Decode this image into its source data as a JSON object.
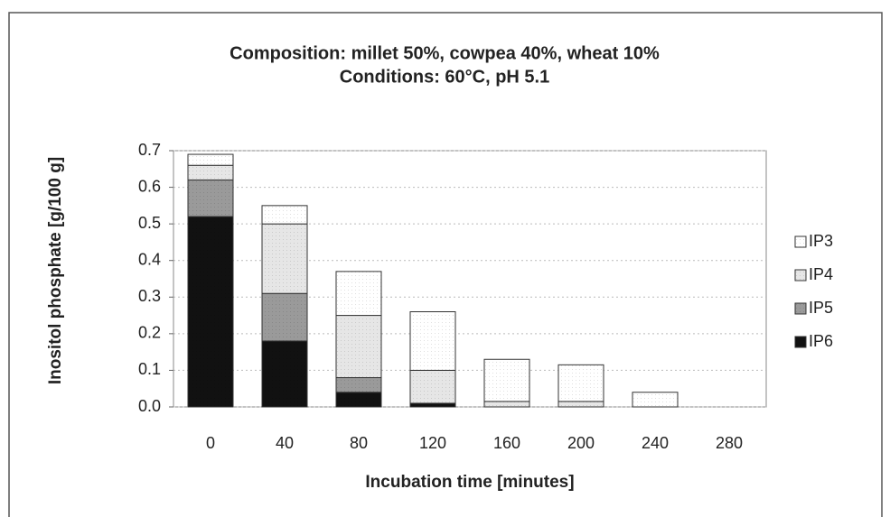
{
  "chart_data": {
    "type": "stacked-bar",
    "title": [
      "Composition: millet 50%, cowpea 40%, wheat 10%",
      "Conditions: 60°C, pH 5.1"
    ],
    "x_label": "Incubation time [minutes]",
    "y_label": "Inositol phosphate [g/100 g]",
    "categories": [
      "0",
      "40",
      "80",
      "120",
      "160",
      "200",
      "240",
      "280"
    ],
    "series": [
      {
        "name": "IP6",
        "color": "#111111",
        "values": [
          0.52,
          0.18,
          0.04,
          0.01,
          0,
          0,
          0,
          0
        ]
      },
      {
        "name": "IP5",
        "color": "#9a9a9a",
        "values": [
          0.1,
          0.13,
          0.04,
          0,
          0,
          0,
          0,
          0
        ]
      },
      {
        "name": "IP4",
        "color": "#e6e6e6",
        "values": [
          0.04,
          0.19,
          0.17,
          0.09,
          0.015,
          0.015,
          0,
          0
        ]
      },
      {
        "name": "IP3",
        "color": "#ffffff",
        "values": [
          0.03,
          0.05,
          0.12,
          0.16,
          0.115,
          0.1,
          0.04,
          0
        ]
      }
    ],
    "ylim": [
      0,
      0.7
    ],
    "yticks": [
      {
        "value": 0,
        "label": "0.0"
      },
      0.1,
      0.2,
      0.3,
      0.4,
      0.5,
      0.6,
      0.7
    ],
    "grid": true,
    "legend": "right"
  }
}
